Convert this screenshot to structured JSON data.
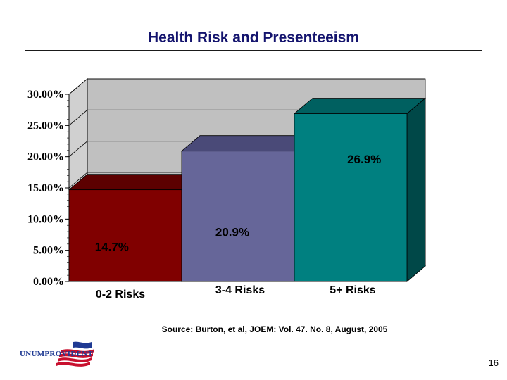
{
  "slide": {
    "title": "Health Risk and Presenteeism",
    "source": "Source: Burton, et al, JOEM: Vol. 47. No. 8, August, 2005",
    "page_number": "16",
    "logo_text": "UNUMPROVIDENT",
    "logo_icon": "flag-logo-icon"
  },
  "chart_data": {
    "type": "bar",
    "title": "",
    "xlabel": "",
    "ylabel": "",
    "ylim": [
      0,
      0.3
    ],
    "yticks": [
      0,
      0.05,
      0.1,
      0.15,
      0.2,
      0.25,
      0.3
    ],
    "ytick_labels": [
      "0.00%",
      "5.00%",
      "10.00%",
      "15.00%",
      "20.00%",
      "25.00%",
      "30.00%"
    ],
    "categories": [
      "0-2 Risks",
      "3-4 Risks",
      "5+ Risks"
    ],
    "values": [
      0.147,
      0.209,
      0.269
    ],
    "data_labels": [
      "14.7%",
      "20.9%",
      "26.9%"
    ],
    "grid": true,
    "legend": "none",
    "style": "3d",
    "colors": {
      "bars": [
        "#800000",
        "#666699",
        "#008080"
      ],
      "bar_tops": [
        "#5c0000",
        "#4a4a78",
        "#006060"
      ],
      "bar_sides": [
        "#4a0000",
        "#3e3e64",
        "#004848"
      ],
      "wall": "#c0c0c0",
      "floor": "#808080"
    }
  }
}
